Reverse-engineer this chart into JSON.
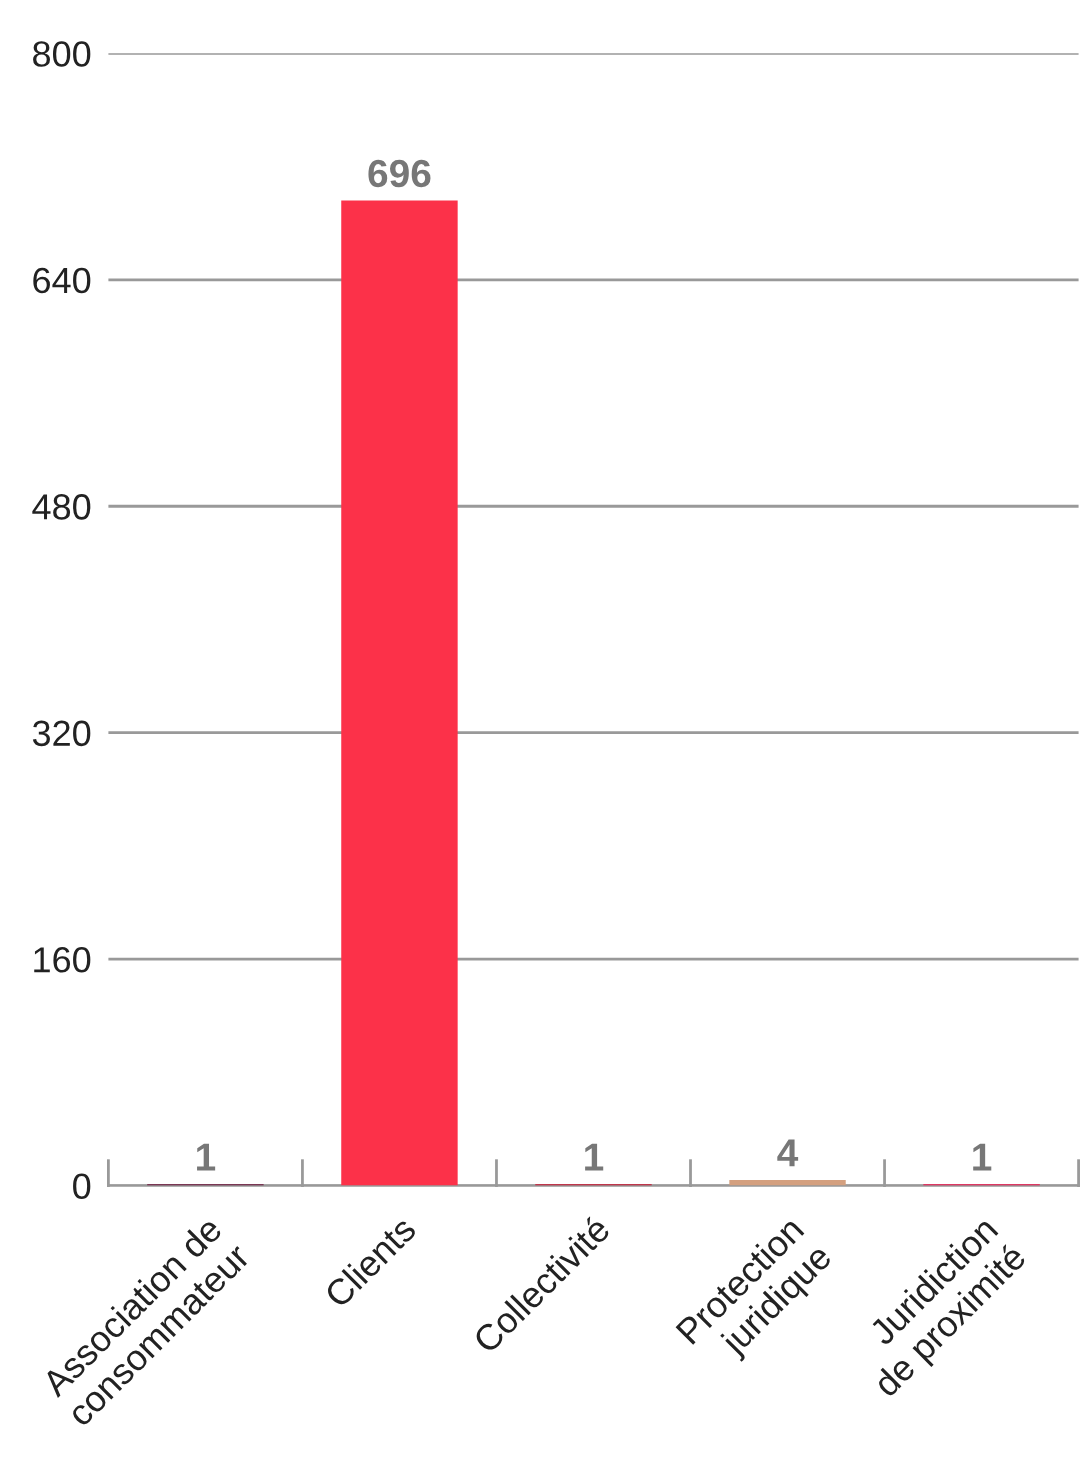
{
  "chart_data": {
    "type": "bar",
    "categories": [
      "Association de\nconsommateur",
      "Clients",
      "Collectivité",
      "Protection\njuridique",
      "Juridiction\nde proximité"
    ],
    "values": [
      1,
      696,
      1,
      4,
      1
    ],
    "colors": [
      "#6b1238",
      "#fc3149",
      "#c8102e",
      "#d4a07f",
      "#f0134d"
    ],
    "ylim": [
      0,
      800
    ],
    "yticks": [
      0,
      160,
      320,
      480,
      640,
      800
    ],
    "grid": "y",
    "data_labels": true
  }
}
